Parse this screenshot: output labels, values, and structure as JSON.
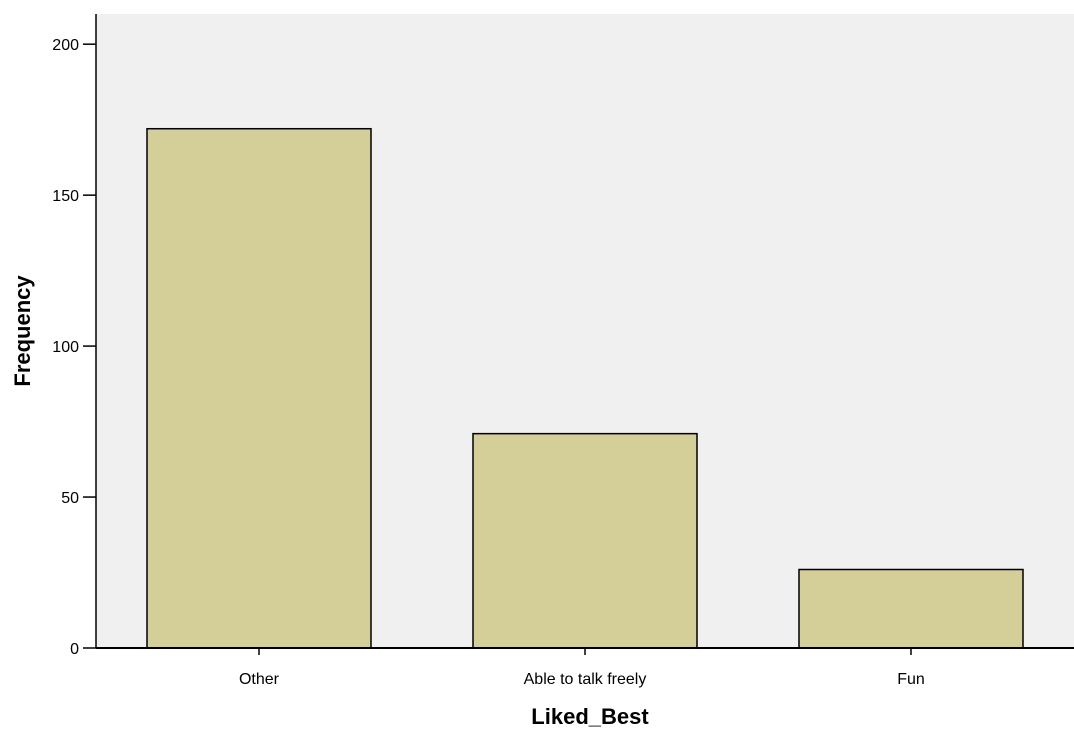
{
  "chart_data": {
    "type": "bar",
    "title": "",
    "xlabel": "Liked_Best",
    "ylabel": "Frequency",
    "categories": [
      "Other",
      "Able to talk freely",
      "Fun"
    ],
    "values": [
      172,
      71,
      26
    ],
    "ylim": [
      0,
      210
    ],
    "yticks": [
      0,
      50,
      100,
      150,
      200
    ],
    "ytick_labels": [
      "0",
      "50",
      "100",
      "150",
      "200"
    ],
    "grid": false,
    "legend": "none",
    "colors": {
      "bar_fill": "#d4cf98",
      "bar_stroke": "#000000",
      "plot_background": "#f0f0f0",
      "axis": "#000000"
    }
  }
}
